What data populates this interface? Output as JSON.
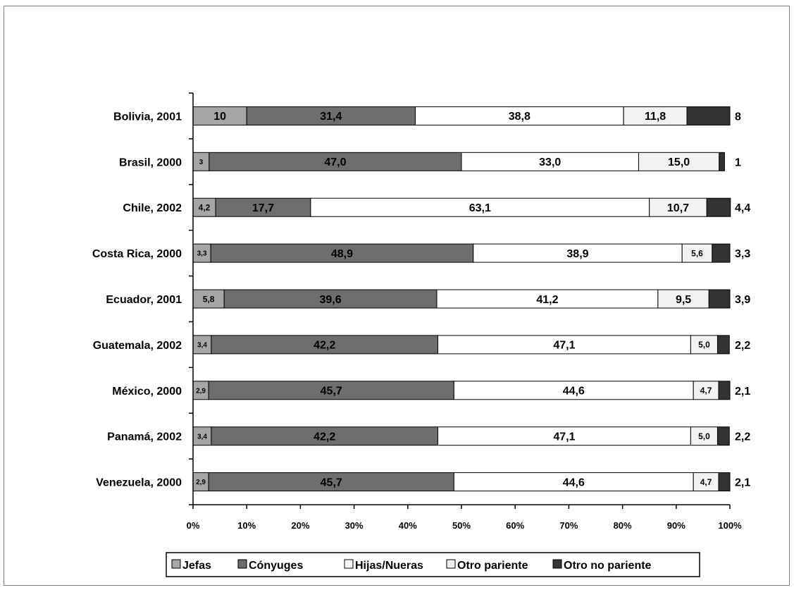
{
  "chart_data": {
    "type": "bar",
    "orientation": "horizontal",
    "stacked": "percent",
    "categories": [
      "Bolivia, 2001",
      "Brasil, 2000",
      "Chile, 2002",
      "Costa Rica, 2000",
      "Ecuador, 2001",
      "Guatemala, 2002",
      "México, 2000",
      "Panamá, 2002",
      "Venezuela, 2000"
    ],
    "series": [
      {
        "name": "Jefas",
        "color": "#a6a6a6",
        "values": [
          10,
          3,
          4.2,
          3.3,
          5.8,
          3.4,
          2.9,
          3.4,
          2.9
        ],
        "labels": [
          "10",
          "3",
          "4,2",
          "3,3",
          "5,8",
          "3,4",
          "2,9",
          "3,4",
          "2,9"
        ]
      },
      {
        "name": "Cónyuges",
        "color": "#6e6e6e",
        "values": [
          31.4,
          47.0,
          17.7,
          48.9,
          39.6,
          42.2,
          45.7,
          42.2,
          45.7
        ],
        "labels": [
          "31,4",
          "47,0",
          "17,7",
          "48,9",
          "39,6",
          "42,2",
          "45,7",
          "42,2",
          "45,7"
        ]
      },
      {
        "name": "Hijas/Nueras",
        "color": "#ffffff",
        "values": [
          38.8,
          33.0,
          63.1,
          38.9,
          41.2,
          47.1,
          44.6,
          47.1,
          44.6
        ],
        "labels": [
          "38,8",
          "33,0",
          "63,1",
          "38,9",
          "41,2",
          "47,1",
          "44,6",
          "47,1",
          "44,6"
        ]
      },
      {
        "name": "Otro pariente",
        "color": "#f2f2f2",
        "values": [
          11.8,
          15.0,
          10.7,
          5.6,
          9.5,
          5.0,
          4.7,
          5.0,
          4.7
        ],
        "labels": [
          "11,8",
          "15,0",
          "10,7",
          "5,6",
          "9,5",
          "5,0",
          "4,7",
          "5,0",
          "4,7"
        ]
      },
      {
        "name": "Otro no pariente",
        "color": "#333333",
        "values": [
          8,
          1,
          4.4,
          3.3,
          3.9,
          2.2,
          2.1,
          2.2,
          2.1
        ],
        "labels": [
          "8",
          "1",
          "4,4",
          "3,3",
          "3,9",
          "2,2",
          "2,1",
          "2,2",
          "2,1"
        ]
      }
    ],
    "xlim": [
      0,
      100
    ],
    "xticks": [
      "0%",
      "10%",
      "20%",
      "30%",
      "40%",
      "50%",
      "60%",
      "70%",
      "80%",
      "90%",
      "100%"
    ],
    "title": "",
    "xlabel": "",
    "ylabel": "",
    "grid": false,
    "legend_position": "bottom"
  }
}
